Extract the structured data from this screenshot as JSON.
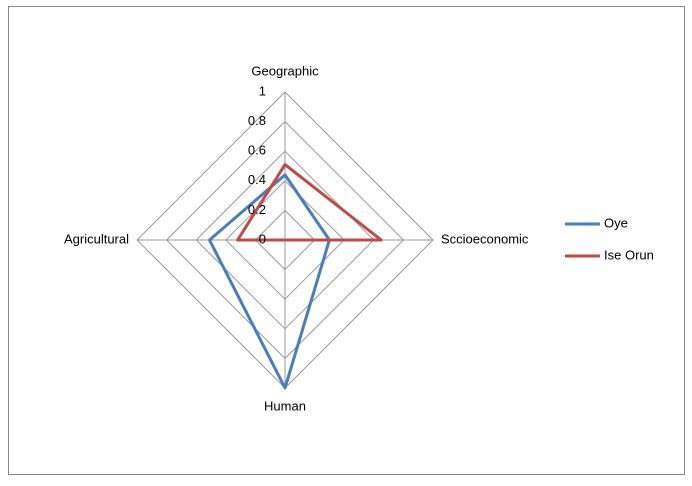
{
  "chart_data": {
    "type": "radar",
    "categories": [
      "Geographic",
      "Sccioeconomic",
      "Human",
      "Agricultural"
    ],
    "series": [
      {
        "name": "Oye",
        "color": "#4a7ebb",
        "values": [
          0.44,
          0.3,
          1.0,
          0.51
        ]
      },
      {
        "name": "Ise Orun",
        "color": "#be4b48",
        "values": [
          0.51,
          0.65,
          0,
          0.32
        ]
      }
    ],
    "ylim": [
      0,
      1
    ],
    "yticks": [
      0,
      0.2,
      0.4,
      0.6,
      0.8,
      1
    ],
    "grid": true,
    "legend": "right"
  }
}
